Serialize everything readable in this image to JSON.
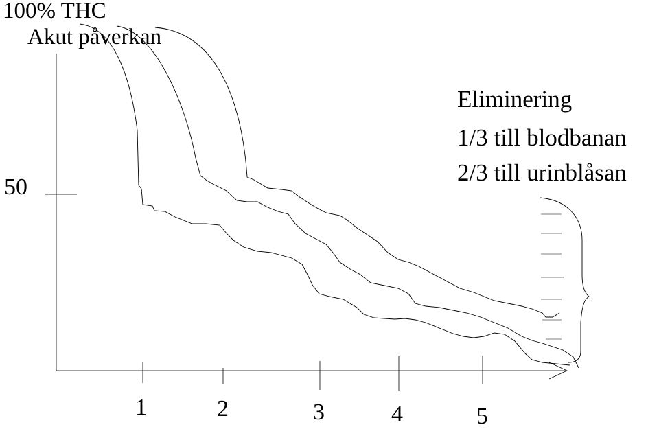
{
  "diagram": {
    "title_line1": "100% THC",
    "title_line2": "Akut påverkan",
    "y_mark_label": "50",
    "elimination": {
      "heading": "Eliminering",
      "line1": "1/3 till blodbanan",
      "line2": "2/3 till urinblåsan"
    },
    "x_ticks": [
      "1",
      "2",
      "3",
      "4",
      "5"
    ]
  }
}
